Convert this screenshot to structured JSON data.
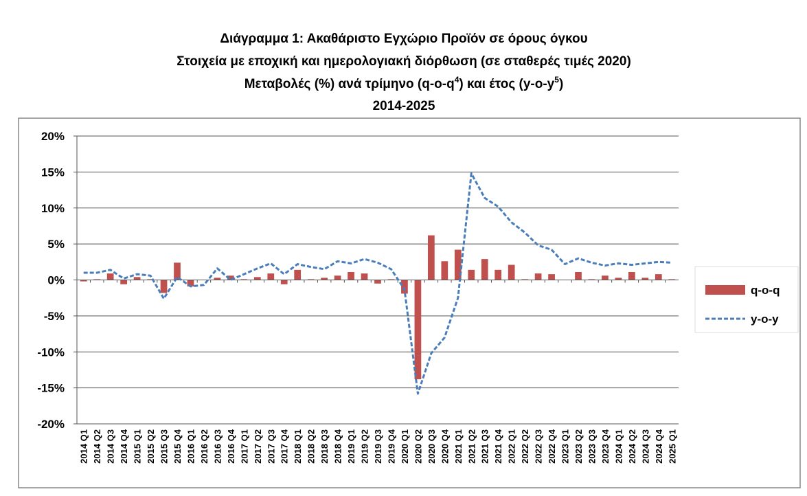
{
  "chart_data": {
    "type": "bar_line",
    "title": "Διάγραμμα 1: Ακαθάριστο Εγχώριο Προϊόν σε όρους όγκου",
    "subtitle": "Στοιχεία με εποχική και ημερολογιακή διόρθωση (σε σταθερές τιμές 2020)",
    "subtitle2": [
      "Μεταβολές (%) ανά τρίμηνο (q-o-q",
      "4",
      ") και έτος (y-o-y",
      "5",
      ")"
    ],
    "period": "2014-2025",
    "categories": [
      "2014 Q1",
      "2014 Q2",
      "2014 Q3",
      "2014 Q4",
      "2015 Q1",
      "2015 Q2",
      "2015 Q3",
      "2015 Q4",
      "2016 Q1",
      "2016 Q2",
      "2016 Q3",
      "2016 Q4",
      "2017 Q1",
      "2017 Q2",
      "2017 Q3",
      "2017 Q4",
      "2018 Q1",
      "2018 Q2",
      "2018 Q3",
      "2018 Q4",
      "2019 Q1",
      "2019 Q2",
      "2019 Q3",
      "2019 Q4",
      "2020 Q1",
      "2020 Q2",
      "2020 Q3",
      "2020 Q4",
      "2021 Q1",
      "2021 Q2",
      "2021 Q3",
      "2021 Q4",
      "2022 Q1",
      "2022 Q2",
      "2022 Q3",
      "2022 Q4",
      "2023 Q1",
      "2023 Q2",
      "2023 Q3",
      "2023 Q4",
      "2024 Q1",
      "2024 Q2",
      "2024 Q3",
      "2024 Q4",
      "2025 Q1"
    ],
    "series": [
      {
        "name": "q-o-q",
        "kind": "bar",
        "color": "#c0504d",
        "values": [
          -0.2,
          0.1,
          0.9,
          -0.6,
          0.4,
          0.1,
          -1.8,
          2.4,
          -0.9,
          0.0,
          0.3,
          0.6,
          0.1,
          0.4,
          0.9,
          -0.6,
          1.4,
          0.1,
          0.3,
          0.6,
          1.1,
          0.9,
          -0.5,
          0.1,
          -1.9,
          -13.8,
          6.2,
          2.6,
          4.2,
          1.4,
          2.9,
          1.4,
          2.1,
          0.1,
          0.9,
          0.8,
          0.0,
          1.1,
          0.1,
          0.6,
          0.3,
          1.1,
          0.3,
          0.8,
          0.1
        ]
      },
      {
        "name": "y-o-y",
        "kind": "line",
        "color": "#4a7ebb",
        "values": [
          1.0,
          1.0,
          1.4,
          0.2,
          0.8,
          0.6,
          -2.6,
          0.4,
          -0.9,
          -0.7,
          1.6,
          0.0,
          0.8,
          1.6,
          2.3,
          0.8,
          2.2,
          1.8,
          1.5,
          2.6,
          2.3,
          2.9,
          2.4,
          1.5,
          -1.3,
          -15.8,
          -10.2,
          -8.0,
          -2.5,
          14.8,
          11.4,
          10.2,
          8.0,
          6.6,
          4.8,
          4.2,
          2.2,
          3.0,
          2.4,
          2.0,
          2.3,
          2.1,
          2.3,
          2.5,
          2.4
        ]
      }
    ],
    "ylim": [
      -20,
      20
    ],
    "yticks": [
      {
        "value": -20,
        "label": "-20%"
      },
      {
        "value": -15,
        "label": "-15%"
      },
      {
        "value": -10,
        "label": "-10%"
      },
      {
        "value": -5,
        "label": "-5%"
      },
      {
        "value": 0,
        "label": "0%"
      },
      {
        "value": 5,
        "label": "5%"
      },
      {
        "value": 10,
        "label": "10%"
      },
      {
        "value": 15,
        "label": "15%"
      },
      {
        "value": 20,
        "label": "20%"
      }
    ],
    "grid": true,
    "legend": "right"
  }
}
